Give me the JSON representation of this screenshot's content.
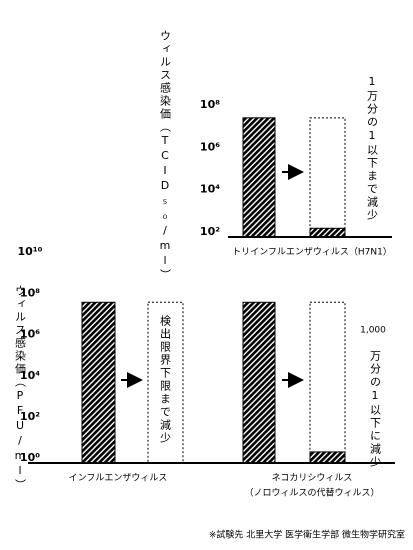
{
  "chart_data": [
    {
      "type": "bar",
      "log_scale": true,
      "y_label": "ウィルス感染価（TCID₅₀/ml）",
      "categories": [
        "トリインフルエンザウィルス（H7N1）"
      ],
      "series": [
        {
          "color": "#000000",
          "values": [
            25000000
          ]
        },
        {
          "color": "#000000",
          "values": [
            150
          ]
        }
      ],
      "ylim": [
        58,
        300000000
      ],
      "yticks": [
        {
          "value": 100000000,
          "label": "10⁸"
        },
        {
          "value": 1000000,
          "label": "10⁶"
        },
        {
          "value": 10000,
          "label": "10⁴"
        },
        {
          "value": 100,
          "label": "10²"
        }
      ],
      "annotations": [
        "1万分の1以下まで減少"
      ]
    },
    {
      "type": "bar",
      "log_scale": true,
      "y_label": "ウィルス感染価（PFU/ml）",
      "categories": [
        "インフルエンザウィルス",
        "ネコカリシウィルス"
      ],
      "category_notes": [
        null,
        "（ノロウィルスの代替ウィルス）"
      ],
      "series": [
        {
          "color": "#000000",
          "values": [
            37000000,
            37000000
          ]
        },
        {
          "color": "#000000",
          "values": [
            null,
            2
          ]
        }
      ],
      "ylim": [
        0.58,
        20000000000
      ],
      "yticks": [
        {
          "value": 10000000000,
          "label": "10¹⁰"
        },
        {
          "value": 100000000,
          "label": "10⁸"
        },
        {
          "value": 1000000,
          "label": "10⁶"
        },
        {
          "value": 10000,
          "label": "10⁴"
        },
        {
          "value": 100,
          "label": "10²"
        },
        {
          "value": 1,
          "label": "10⁰"
        }
      ],
      "annotations": [
        "検出限界下限まで減少",
        "1,000",
        "万分の1以下に減少"
      ]
    }
  ],
  "footnote": "※試験先 北里大学 医学衛生学部 微生物学研究室"
}
